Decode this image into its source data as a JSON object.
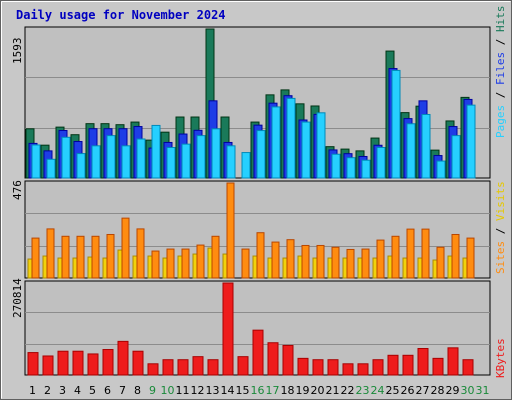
{
  "title": "Daily usage for November 2024",
  "colors": {
    "hits": "#1a7a5a",
    "files": "#1e3de6",
    "pages": "#26d0ff",
    "visits": "#f2d20c",
    "sites": "#ff8c10",
    "kbytes": "#ee1c1c",
    "weekday_label": "#000000",
    "weekend_label": "#1a8a3a"
  },
  "chart_data": [
    {
      "type": "bar",
      "title": "Daily usage for November 2024",
      "categories": [
        "1",
        "2",
        "3",
        "4",
        "5",
        "6",
        "7",
        "8",
        "9",
        "10",
        "11",
        "12",
        "13",
        "14",
        "15",
        "16",
        "17",
        "18",
        "19",
        "20",
        "21",
        "22",
        "23",
        "24",
        "25",
        "26",
        "27",
        "28",
        "29",
        "30",
        "31"
      ],
      "weekend_days": [
        "9",
        "10",
        "16",
        "17",
        "23",
        "24",
        "30",
        "31"
      ],
      "ylim": [
        0,
        1593
      ],
      "max_label": "1593",
      "legend_label": {
        "pages": "Pages",
        "files": "Files",
        "hits": "Hits",
        "sep": " / "
      },
      "series": [
        {
          "name": "Hits",
          "values": [
            526,
            351,
            544,
            463,
            581,
            581,
            570,
            598,
            405,
            490,
            652,
            652,
            1593,
            652,
            0,
            598,
            889,
            942,
            793,
            770,
            335,
            309,
            290,
            427,
            1357,
            699,
            768,
            298,
            610,
            862,
            0
          ]
        },
        {
          "name": "Files",
          "values": [
            370,
            290,
            508,
            390,
            527,
            527,
            527,
            550,
            320,
            380,
            470,
            510,
            825,
            380,
            0,
            565,
            800,
            880,
            620,
            680,
            300,
            260,
            230,
            350,
            1170,
            635,
            825,
            240,
            550,
            840,
            0
          ]
        },
        {
          "name": "Pages",
          "values": [
            353,
            200,
            435,
            261,
            344,
            453,
            344,
            417,
            562,
            326,
            362,
            453,
            526,
            344,
            272,
            507,
            760,
            851,
            598,
            697,
            254,
            217,
            190,
            326,
            1150,
            580,
            679,
            181,
            453,
            779,
            0
          ]
        }
      ]
    },
    {
      "type": "bar",
      "categories": [
        "1",
        "2",
        "3",
        "4",
        "5",
        "6",
        "7",
        "8",
        "9",
        "10",
        "11",
        "12",
        "13",
        "14",
        "15",
        "16",
        "17",
        "18",
        "19",
        "20",
        "21",
        "22",
        "23",
        "24",
        "25",
        "26",
        "27",
        "28",
        "29",
        "30",
        "31"
      ],
      "ylim": [
        0,
        476
      ],
      "max_label": "476",
      "legend_label": {
        "sites": "Sites",
        "visits": "Visits",
        "sep": " / "
      },
      "series": [
        {
          "name": "Visits",
          "values": [
            95,
            110,
            100,
            100,
            105,
            100,
            140,
            110,
            110,
            100,
            110,
            120,
            150,
            120,
            0,
            110,
            100,
            100,
            110,
            100,
            100,
            100,
            100,
            100,
            110,
            100,
            100,
            90,
            110,
            100,
            0
          ]
        },
        {
          "name": "Sites",
          "values": [
            200,
            246,
            209,
            209,
            209,
            218,
            300,
            246,
            135,
            145,
            145,
            165,
            209,
            476,
            145,
            227,
            180,
            192,
            163,
            163,
            154,
            143,
            145,
            190,
            209,
            245,
            245,
            154,
            218,
            200,
            0
          ]
        }
      ]
    },
    {
      "type": "bar",
      "categories": [
        "1",
        "2",
        "3",
        "4",
        "5",
        "6",
        "7",
        "8",
        "9",
        "10",
        "11",
        "12",
        "13",
        "14",
        "15",
        "16",
        "17",
        "18",
        "19",
        "20",
        "21",
        "22",
        "23",
        "24",
        "25",
        "26",
        "27",
        "28",
        "29",
        "30",
        "31"
      ],
      "ylim": [
        0,
        270814
      ],
      "max_label": "270814",
      "legend_label": {
        "kbytes": "KBytes"
      },
      "series": [
        {
          "name": "KBytes",
          "values": [
            66000,
            56000,
            70000,
            70000,
            62000,
            75000,
            99000,
            70000,
            33000,
            45000,
            45000,
            54000,
            45000,
            270814,
            54000,
            132000,
            95000,
            87000,
            49000,
            45000,
            45000,
            33000,
            33000,
            45000,
            58000,
            58000,
            78000,
            49000,
            80000,
            45000,
            0
          ]
        }
      ]
    }
  ]
}
